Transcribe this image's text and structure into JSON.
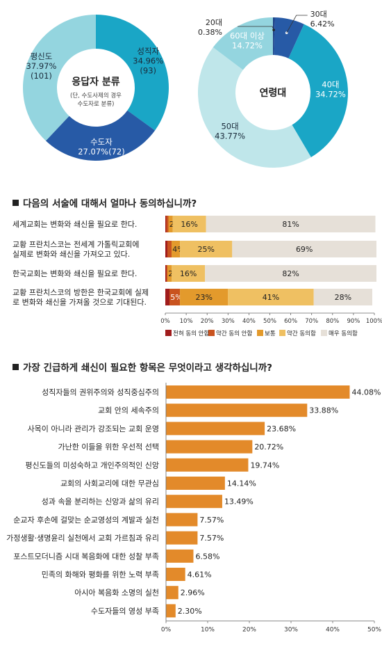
{
  "pie_left": {
    "title": "응답자 분류",
    "subtitle_lines": [
      "(단, 수도사제의 경우",
      "수도자로 분류)"
    ],
    "slices": [
      {
        "label": "성직자",
        "pct": "34.96%",
        "count": "(93)",
        "value": 34.96,
        "color": "#1aa6c6"
      },
      {
        "label": "수도자",
        "pct": "27.07%",
        "count": "(72)",
        "value": 27.07,
        "color": "#275aa6"
      },
      {
        "label": "평신도",
        "pct": "37.97%",
        "count": "(101)",
        "value": 37.97,
        "color": "#94d5df"
      }
    ]
  },
  "pie_right": {
    "title": "연령대",
    "slices": [
      {
        "label": "20대",
        "pct": "0.38%",
        "value": 0.38,
        "color": "#1d3f86"
      },
      {
        "label": "30대",
        "pct": "6.42%",
        "value": 6.42,
        "color": "#275aa6"
      },
      {
        "label": "40대",
        "pct": "34.72%",
        "value": 34.72,
        "color": "#1aa6c6"
      },
      {
        "label": "50대",
        "pct": "43.77%",
        "value": 43.77,
        "color": "#bfe6ea"
      },
      {
        "label": "60대 이상",
        "pct": "14.72%",
        "value": 14.72,
        "color": "#94d5df"
      }
    ]
  },
  "q1": {
    "title": "다음의 서술에 대해서 얼마나 동의하십니까?",
    "legend": [
      "전혀 동의 안함",
      "약간 동의 안함",
      "보통",
      "약간 동의함",
      "매우 동의함"
    ],
    "colors": [
      "#a01c1c",
      "#c9531f",
      "#e39a2c",
      "#efc062",
      "#e6e0d8"
    ],
    "ticks": [
      "0%",
      "10%",
      "20%",
      "30%",
      "40%",
      "50%",
      "60%",
      "70%",
      "80%",
      "90%",
      "100%"
    ]
  },
  "q2": {
    "title": "가장 긴급하게 쇄신이 필요한 항목은 무엇이라고 생각하십니까?",
    "ticks": [
      "0%",
      "10%",
      "20%",
      "30%",
      "40%",
      "50%"
    ],
    "bar_color": "#e38a2a"
  },
  "chart_data": [
    {
      "type": "pie",
      "title": "응답자 분류",
      "categories": [
        "성직자",
        "수도자",
        "평신도"
      ],
      "values": [
        34.96,
        27.07,
        37.97
      ],
      "counts": [
        93,
        72,
        101
      ]
    },
    {
      "type": "pie",
      "title": "연령대",
      "categories": [
        "20대",
        "30대",
        "40대",
        "50대",
        "60대 이상"
      ],
      "values": [
        0.38,
        6.42,
        34.72,
        43.77,
        14.72
      ]
    },
    {
      "type": "bar",
      "stacked": true,
      "orientation": "horizontal",
      "title": "다음의 서술에 대해서 얼마나 동의하십니까?",
      "categories": [
        [
          "세계교회는 변화와 쇄신을 필요로 한다."
        ],
        [
          "교황 프란치스코는 전세계 가톨릭교회에",
          "실제로 변화와 쇄신을 가져오고 있다."
        ],
        [
          "한국교회는 변화와 쇄신을 필요로 한다."
        ],
        [
          "교황 프란치스코의 방한은 한국교회에 실제",
          "로 변화와 쇄신을 가져올 것으로 기대된다."
        ]
      ],
      "series": [
        {
          "name": "전혀 동의 안함",
          "values": [
            0.5,
            1,
            0.5,
            2
          ]
        },
        {
          "name": "약간 동의 안함",
          "values": [
            1,
            2,
            0.5,
            5
          ]
        },
        {
          "name": "보통",
          "values": [
            2,
            4,
            2,
            23
          ]
        },
        {
          "name": "약간 동의함",
          "values": [
            16,
            25,
            16,
            41
          ]
        },
        {
          "name": "매우 동의함",
          "values": [
            81,
            69,
            82,
            28
          ]
        }
      ],
      "data_labels": [
        [
          null,
          null,
          "2%",
          "16%",
          "81%"
        ],
        [
          null,
          null,
          "4%",
          "25%",
          "69%"
        ],
        [
          null,
          null,
          "2%",
          "16%",
          "82%"
        ],
        [
          null,
          "5%",
          "23%",
          "41%",
          "28%"
        ]
      ],
      "xlim": [
        0,
        100
      ]
    },
    {
      "type": "bar",
      "orientation": "horizontal",
      "title": "가장 긴급하게 쇄신이 필요한 항목은 무엇이라고 생각하십니까?",
      "categories": [
        "성직자들의 권위주의와 성직중심주의",
        "교회 안의 세속주의",
        "사목이 아니라 관리가 강조되는 교회 운영",
        "가난한 이들을 위한 우선적 선택",
        "평신도들의 미성숙하고 개인주의적인 신앙",
        "교회의 사회교리에 대한 무관심",
        "성과 속을 분리하는 신앙과 삶의 유리",
        "순교자 후손에 걸맞는 순교영성의 계발과 실천",
        "가정생활·생명윤리 실천에서 교회 가르침과 유리",
        "포스트모더니즘 시대 복음화에 대한 성찰 부족",
        "민족의 화해와 평화를 위한 노력 부족",
        "아시아 복음화 소명의 실천",
        "수도자들의 영성 부족"
      ],
      "values": [
        44.08,
        33.88,
        23.68,
        20.72,
        19.74,
        14.14,
        13.49,
        7.57,
        7.57,
        6.58,
        4.61,
        2.96,
        2.3
      ],
      "labels": [
        "44.08%",
        "33.88%",
        "23.68%",
        "20.72%",
        "19.74%",
        "14.14%",
        "13.49%",
        "7.57%",
        "7.57%",
        "6.58%",
        "4.61%",
        "2.96%",
        "2.30%"
      ],
      "xlim": [
        0,
        50
      ]
    }
  ]
}
